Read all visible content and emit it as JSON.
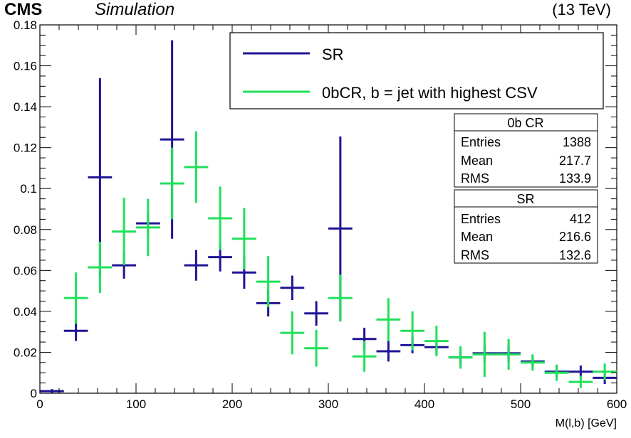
{
  "header": {
    "experiment": "CMS",
    "qualifier": "Simulation",
    "energy": "(13 TeV)"
  },
  "legend": {
    "entries": [
      {
        "label": "SR",
        "color": "#1f1495"
      },
      {
        "label": "0bCR, b = jet with highest CSV",
        "color": "#1fe05a"
      }
    ]
  },
  "stats_boxes": [
    {
      "title": "0b CR",
      "rows": [
        {
          "label": "Entries",
          "value": "1388"
        },
        {
          "label": "Mean",
          "value": "217.7"
        },
        {
          "label": "RMS",
          "value": "133.9"
        }
      ]
    },
    {
      "title": "SR",
      "rows": [
        {
          "label": "Entries",
          "value": "412"
        },
        {
          "label": "Mean",
          "value": "216.6"
        },
        {
          "label": "RMS",
          "value": "132.6"
        }
      ]
    }
  ],
  "chart_data": {
    "type": "scatter",
    "xlabel": "M(l,b) [GeV]",
    "ylabel": "",
    "xlim": [
      0,
      600
    ],
    "ylim": [
      0,
      0.18
    ],
    "xticks": [
      0,
      100,
      200,
      300,
      400,
      500,
      600
    ],
    "xtick_labels": [
      "0",
      "100",
      "200",
      "300",
      "400",
      "500",
      "600"
    ],
    "yticks": [
      0,
      0.02,
      0.04,
      0.06,
      0.08,
      0.1,
      0.12,
      0.14,
      0.16,
      0.18
    ],
    "ytick_labels": [
      "0",
      "0.02",
      "0.04",
      "0.06",
      "0.08",
      "0.1",
      "0.12",
      "0.14",
      "0.16",
      "0.18"
    ],
    "bin_width": 25,
    "grid": false,
    "series": [
      {
        "name": "SR",
        "color": "#1f1495",
        "x": [
          12.5,
          37.5,
          62.5,
          87.5,
          112.5,
          137.5,
          162.5,
          187.5,
          212.5,
          237.5,
          262.5,
          287.5,
          312.5,
          337.5,
          362.5,
          387.5,
          412.5,
          437.5,
          462.5,
          487.5,
          512.5,
          537.5,
          562.5,
          587.5
        ],
        "y": [
          0.001,
          0.0305,
          0.1055,
          0.0625,
          0.083,
          0.124,
          0.0625,
          0.0665,
          0.059,
          0.044,
          0.0515,
          0.039,
          0.0805,
          0.0265,
          0.0205,
          0.0235,
          0.0225,
          0.0175,
          0.0195,
          0.0195,
          0.0155,
          0.0105,
          0.0105,
          0.0075
        ],
        "yerr": [
          0.001,
          0.005,
          0.0485,
          0.0065,
          0.005,
          0.0485,
          0.0075,
          0.007,
          0.008,
          0.0065,
          0.006,
          0.006,
          0.045,
          0.0055,
          0.005,
          0.004,
          0.0035,
          0.003,
          0.004,
          0.004,
          0.003,
          0.003,
          0.003,
          0.003
        ]
      },
      {
        "name": "0bCR, b = jet with highest CSV",
        "color": "#1fe05a",
        "x": [
          37.5,
          62.5,
          87.5,
          112.5,
          137.5,
          162.5,
          187.5,
          212.5,
          237.5,
          262.5,
          287.5,
          312.5,
          337.5,
          362.5,
          387.5,
          412.5,
          437.5,
          462.5,
          487.5,
          512.5,
          537.5,
          562.5,
          587.5
        ],
        "y": [
          0.0465,
          0.0615,
          0.079,
          0.081,
          0.1025,
          0.1105,
          0.0855,
          0.0755,
          0.0545,
          0.0295,
          0.022,
          0.0465,
          0.018,
          0.036,
          0.0305,
          0.0255,
          0.0175,
          0.019,
          0.019,
          0.015,
          0.01,
          0.0055,
          0.0105
        ],
        "yerr": [
          0.0125,
          0.0125,
          0.0165,
          0.014,
          0.0175,
          0.0175,
          0.0155,
          0.015,
          0.0125,
          0.0105,
          0.009,
          0.0115,
          0.0075,
          0.0105,
          0.0095,
          0.0075,
          0.0055,
          0.011,
          0.0075,
          0.004,
          0.004,
          0.003,
          0.004
        ]
      }
    ]
  }
}
